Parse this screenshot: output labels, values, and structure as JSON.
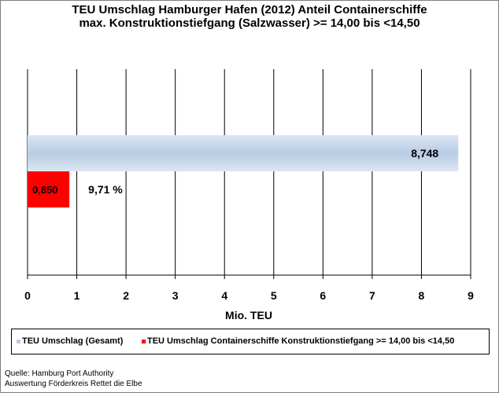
{
  "chart_data": {
    "type": "bar",
    "orientation": "horizontal",
    "title": "TEU Umschlag Hamburger Hafen (2012) Anteil Containerschiffe",
    "subtitle": "max. Konstruktionstiefgang (Salzwasser) >= 14,00 bis <14,50",
    "xlabel": "Mio. TEU",
    "ylabel": "",
    "xlim": [
      0,
      9
    ],
    "x_ticks": [
      "0",
      "1",
      "2",
      "3",
      "4",
      "5",
      "6",
      "7",
      "8",
      "9"
    ],
    "grid": "vertical",
    "legend_position": "bottom",
    "series": [
      {
        "name": "TEU Umschlag (Gesamt)",
        "value": 8.748,
        "label": "8,748",
        "color": "#b8cce4"
      },
      {
        "name": "TEU Umschlag Containerschiffe Konstruktionstiefgang >= 14,00 bis <14,50",
        "value": 0.85,
        "label": "0,850",
        "color": "#ff0000"
      }
    ],
    "annotation": "9,71 %"
  },
  "source": {
    "line1": "Quelle: Hamburg Port Authority",
    "line2": "Auswertung Förderkreis Rettet die Elbe"
  }
}
